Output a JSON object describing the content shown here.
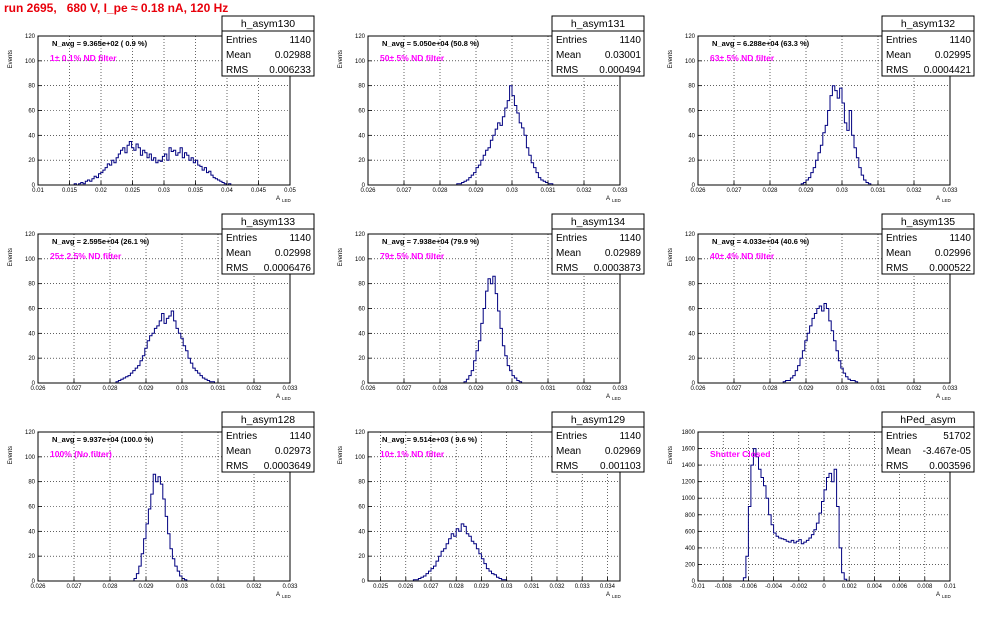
{
  "run_title": "run 2695,   680 V, I_pe ≈ 0.18 nA, 120 Hz",
  "colors": {
    "histogram_line": "#000080",
    "annotation_magenta": "#ff00ff",
    "title_red": "#e8000b",
    "grid": "#000000",
    "frame": "#000000"
  },
  "stats_labels": {
    "entries": "Entries",
    "mean": "Mean",
    "rms": "RMS"
  },
  "chart_data": [
    {
      "type": "bar",
      "name": "h_asym130",
      "ylabel": "Events",
      "xlabel": "A",
      "xlabel_sub": "LED",
      "xlim": [
        0.01,
        0.05
      ],
      "ylim": [
        0,
        120
      ],
      "grid": true,
      "legend_position": "top-right",
      "xticks": [
        "0.01",
        "0.015",
        "0.02",
        "0.025",
        "0.03",
        "0.035",
        "0.04",
        "0.045",
        "0.05"
      ],
      "yticks": [
        "0",
        "20",
        "40",
        "60",
        "80",
        "100",
        "120"
      ],
      "navg_label": "N_avg = 9.365e+02 ( 0.9 %)",
      "filter_label": "1± 0.1% ND filter",
      "stats": {
        "entries": "1140",
        "mean": "0.02988",
        "rms": "0.006233"
      },
      "bins": {
        "start": 0.014,
        "width": 0.00035,
        "counts": [
          0,
          0,
          0,
          0,
          0,
          1,
          0,
          1,
          2,
          1,
          3,
          4,
          3,
          5,
          7,
          6,
          9,
          10,
          12,
          14,
          17,
          16,
          20,
          18,
          22,
          25,
          28,
          30,
          26,
          32,
          35,
          30,
          28,
          33,
          30,
          24,
          28,
          26,
          22,
          25,
          20,
          22,
          18,
          20,
          19,
          23,
          25,
          20,
          30,
          27,
          28,
          24,
          26,
          30,
          22,
          26,
          24,
          20,
          22,
          18,
          20,
          16,
          15,
          12,
          14,
          10,
          11,
          8,
          6,
          5,
          4,
          3,
          2,
          1,
          0,
          1,
          0
        ]
      }
    },
    {
      "type": "bar",
      "name": "h_asym131",
      "ylabel": "Events",
      "xlabel": "A",
      "xlabel_sub": "LED",
      "xlim": [
        0.026,
        0.033
      ],
      "ylim": [
        0,
        120
      ],
      "grid": true,
      "legend_position": "top-right",
      "xticks": [
        "0.026",
        "0.027",
        "0.028",
        "0.029",
        "0.03",
        "0.031",
        "0.032",
        "0.033"
      ],
      "yticks": [
        "0",
        "20",
        "40",
        "60",
        "80",
        "100",
        "120"
      ],
      "navg_label": "N_avg = 5.050e+04 (50.8 %)",
      "filter_label": "50± 5% ND filter",
      "stats": {
        "entries": "1140",
        "mean": "0.03001",
        "rms": "0.000494"
      },
      "bins": {
        "start": 0.0284,
        "width": 6.67e-05,
        "counts": [
          0,
          1,
          1,
          2,
          3,
          4,
          6,
          8,
          10,
          14,
          16,
          20,
          24,
          28,
          30,
          36,
          40,
          45,
          50,
          48,
          55,
          62,
          68,
          80,
          72,
          64,
          58,
          50,
          46,
          40,
          30,
          24,
          18,
          14,
          10,
          6,
          4,
          3,
          2,
          1,
          1,
          0
        ]
      }
    },
    {
      "type": "bar",
      "name": "h_asym132",
      "ylabel": "Events",
      "xlabel": "A",
      "xlabel_sub": "LED",
      "xlim": [
        0.026,
        0.033
      ],
      "ylim": [
        0,
        120
      ],
      "grid": true,
      "legend_position": "top-right",
      "xticks": [
        "0.026",
        "0.027",
        "0.028",
        "0.029",
        "0.03",
        "0.031",
        "0.032",
        "0.033"
      ],
      "yticks": [
        "0",
        "20",
        "40",
        "60",
        "80",
        "100",
        "120"
      ],
      "navg_label": "N_avg = 6.288e+04 (63.3 %)",
      "filter_label": "63± 5% ND filter",
      "stats": {
        "entries": "1140",
        "mean": "0.02995",
        "rms": "0.0004421"
      },
      "bins": {
        "start": 0.0288,
        "width": 6.67e-05,
        "counts": [
          0,
          1,
          2,
          4,
          6,
          10,
          14,
          20,
          26,
          32,
          42,
          48,
          60,
          72,
          80,
          76,
          70,
          78,
          66,
          50,
          44,
          60,
          40,
          30,
          22,
          14,
          8,
          4,
          2,
          1,
          0
        ]
      }
    },
    {
      "type": "bar",
      "name": "h_asym133",
      "ylabel": "Events",
      "xlabel": "A",
      "xlabel_sub": "LED",
      "xlim": [
        0.026,
        0.033
      ],
      "ylim": [
        0,
        120
      ],
      "grid": true,
      "legend_position": "top-right",
      "xticks": [
        "0.026",
        "0.027",
        "0.028",
        "0.029",
        "0.03",
        "0.031",
        "0.032",
        "0.033"
      ],
      "yticks": [
        "0",
        "20",
        "40",
        "60",
        "80",
        "100",
        "120"
      ],
      "navg_label": "N_avg = 2.595e+04 (26.1 %)",
      "filter_label": "25± 2.5% ND filter",
      "stats": {
        "entries": "1140",
        "mean": "0.02998",
        "rms": "0.0006476"
      },
      "bins": {
        "start": 0.0281,
        "width": 6.67e-05,
        "counts": [
          0,
          1,
          2,
          3,
          4,
          5,
          6,
          8,
          10,
          12,
          14,
          18,
          22,
          28,
          34,
          38,
          40,
          44,
          46,
          50,
          56,
          48,
          52,
          54,
          58,
          50,
          44,
          40,
          36,
          30,
          26,
          20,
          16,
          12,
          10,
          8,
          6,
          4,
          3,
          2,
          1,
          1,
          0
        ]
      }
    },
    {
      "type": "bar",
      "name": "h_asym134",
      "ylabel": "Events",
      "xlabel": "A",
      "xlabel_sub": "LED",
      "xlim": [
        0.026,
        0.033
      ],
      "ylim": [
        0,
        120
      ],
      "grid": true,
      "legend_position": "top-right",
      "xticks": [
        "0.026",
        "0.027",
        "0.028",
        "0.029",
        "0.03",
        "0.031",
        "0.032",
        "0.033"
      ],
      "yticks": [
        "0",
        "20",
        "40",
        "60",
        "80",
        "100",
        "120"
      ],
      "navg_label": "N_avg = 7.938e+04 (79.9 %)",
      "filter_label": "79± 5% ND filter",
      "stats": {
        "entries": "1140",
        "mean": "0.02989",
        "rms": "0.0003873"
      },
      "bins": {
        "start": 0.0286,
        "width": 6.67e-05,
        "counts": [
          0,
          1,
          3,
          6,
          10,
          18,
          26,
          34,
          48,
          60,
          74,
          84,
          80,
          86,
          72,
          58,
          44,
          30,
          22,
          14,
          10,
          6,
          4,
          2,
          1,
          0
        ]
      }
    },
    {
      "type": "bar",
      "name": "h_asym135",
      "ylabel": "Events",
      "xlabel": "A",
      "xlabel_sub": "LED",
      "xlim": [
        0.026,
        0.033
      ],
      "ylim": [
        0,
        120
      ],
      "grid": true,
      "legend_position": "top-right",
      "xticks": [
        "0.026",
        "0.027",
        "0.028",
        "0.029",
        "0.03",
        "0.031",
        "0.032",
        "0.033"
      ],
      "yticks": [
        "0",
        "20",
        "40",
        "60",
        "80",
        "100",
        "120"
      ],
      "navg_label": "N_avg = 4.033e+04 (40.6 %)",
      "filter_label": "40± 4% ND filter",
      "stats": {
        "entries": "1140",
        "mean": "0.02996",
        "rms": "0.000522"
      },
      "bins": {
        "start": 0.0283,
        "width": 6.67e-05,
        "counts": [
          0,
          1,
          2,
          2,
          4,
          6,
          10,
          14,
          20,
          26,
          34,
          40,
          46,
          52,
          56,
          60,
          62,
          58,
          64,
          60,
          50,
          42,
          34,
          26,
          18,
          12,
          8,
          5,
          3,
          2,
          2,
          1,
          0
        ]
      }
    },
    {
      "type": "bar",
      "name": "h_asym128",
      "ylabel": "Events",
      "xlabel": "A",
      "xlabel_sub": "LED",
      "xlim": [
        0.026,
        0.033
      ],
      "ylim": [
        0,
        120
      ],
      "grid": true,
      "legend_position": "top-right",
      "xticks": [
        "0.026",
        "0.027",
        "0.028",
        "0.029",
        "0.03",
        "0.031",
        "0.032",
        "0.033"
      ],
      "yticks": [
        "0",
        "20",
        "40",
        "60",
        "80",
        "100",
        "120"
      ],
      "navg_label": "N_avg = 9.937e+04 (100.0 %)",
      "filter_label": "100% (No filter)",
      "stats": {
        "entries": "1140",
        "mean": "0.02973",
        "rms": "0.0003649"
      },
      "bins": {
        "start": 0.0286,
        "width": 6.67e-05,
        "counts": [
          0,
          2,
          6,
          12,
          22,
          34,
          46,
          58,
          70,
          86,
          80,
          84,
          78,
          66,
          52,
          38,
          26,
          18,
          12,
          8,
          4,
          2,
          1,
          0
        ]
      }
    },
    {
      "type": "bar",
      "name": "h_asym129",
      "ylabel": "Events",
      "xlabel": "A",
      "xlabel_sub": "LED",
      "xlim": [
        0.0245,
        0.0345
      ],
      "ylim": [
        0,
        120
      ],
      "grid": true,
      "legend_position": "top-right",
      "xticks": [
        "0.025",
        "0.026",
        "0.027",
        "0.028",
        "0.029",
        "0.03",
        "0.031",
        "0.032",
        "0.033",
        "0.034"
      ],
      "yticks": [
        "0",
        "20",
        "40",
        "60",
        "80",
        "100",
        "120"
      ],
      "navg_label": "N_avg = 9.514e+03 ( 9.6 %)",
      "filter_label": "10± 1% ND filter",
      "stats": {
        "entries": "1140",
        "mean": "0.02969",
        "rms": "0.001103"
      },
      "bins": {
        "start": 0.0262,
        "width": 0.0001,
        "counts": [
          0,
          1,
          1,
          2,
          3,
          4,
          6,
          8,
          10,
          12,
          16,
          20,
          24,
          26,
          30,
          34,
          38,
          36,
          42,
          40,
          46,
          44,
          38,
          36,
          32,
          30,
          26,
          22,
          18,
          14,
          10,
          8,
          6,
          5,
          3,
          2,
          1,
          1,
          0
        ]
      }
    },
    {
      "type": "bar",
      "name": "hPed_asym",
      "ylabel": "Events",
      "xlabel": "A",
      "xlabel_sub": "LED",
      "xlim": [
        -0.01,
        0.01
      ],
      "ylim": [
        0,
        1800
      ],
      "grid": true,
      "legend_position": "top-right",
      "xticks": [
        "-0.01",
        "-0.008",
        "-0.006",
        "-0.004",
        "-0.002",
        "0",
        "0.002",
        "0.004",
        "0.006",
        "0.008",
        "0.01"
      ],
      "yticks": [
        "0",
        "200",
        "400",
        "600",
        "800",
        "1000",
        "1200",
        "1400",
        "1600",
        "1800"
      ],
      "navg_label": "",
      "filter_label": "Shutter Closed",
      "stats": {
        "entries": "51702",
        "mean": "-3.467e-05",
        "rms": "0.003596"
      },
      "bins": {
        "start": -0.0066,
        "width": 0.0002,
        "counts": [
          0,
          40,
          300,
          900,
          1400,
          1600,
          1500,
          1350,
          1250,
          1150,
          1000,
          800,
          680,
          580,
          540,
          520,
          510,
          500,
          480,
          470,
          490,
          460,
          480,
          500,
          450,
          470,
          490,
          520,
          560,
          620,
          700,
          820,
          960,
          1100,
          1250,
          1300,
          1200,
          1350,
          900,
          400,
          100,
          20,
          0
        ]
      }
    }
  ]
}
